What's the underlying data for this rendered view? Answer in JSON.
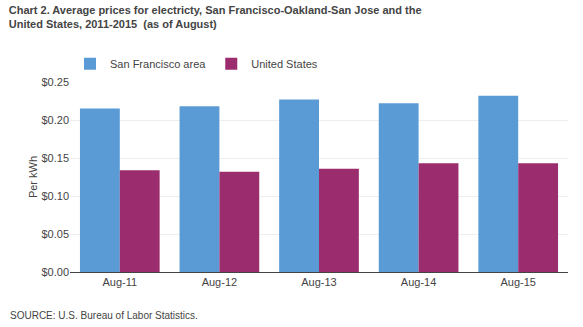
{
  "chart_data": {
    "type": "bar",
    "title": "Chart 2. Average prices for electricty, San Francisco-Oakland-San Jose and the\nUnited States, 2011-2015  (as of August)",
    "ylabel": "Per kWh",
    "source": "SOURCE: U.S. Bureau of Labor Statistics.",
    "categories": [
      "Aug-11",
      "Aug-12",
      "Aug-13",
      "Aug-14",
      "Aug-15"
    ],
    "series": [
      {
        "name": "San Francisco area",
        "color": "#5B9BD5",
        "values": [
          0.215,
          0.218,
          0.227,
          0.222,
          0.232
        ]
      },
      {
        "name": "United States",
        "color": "#9B2C6E",
        "values": [
          0.134,
          0.132,
          0.136,
          0.143,
          0.143
        ]
      }
    ],
    "ylim": [
      0.0,
      0.25
    ],
    "yticks": [
      {
        "value": 0.0,
        "label": "$0.00"
      },
      {
        "value": 0.05,
        "label": "$0.05"
      },
      {
        "value": 0.1,
        "label": "$0.10"
      },
      {
        "value": 0.15,
        "label": "$0.15"
      },
      {
        "value": 0.2,
        "label": "$0.20"
      },
      {
        "value": 0.25,
        "label": "$0.25"
      }
    ],
    "grid": true,
    "legend": "upper left"
  }
}
